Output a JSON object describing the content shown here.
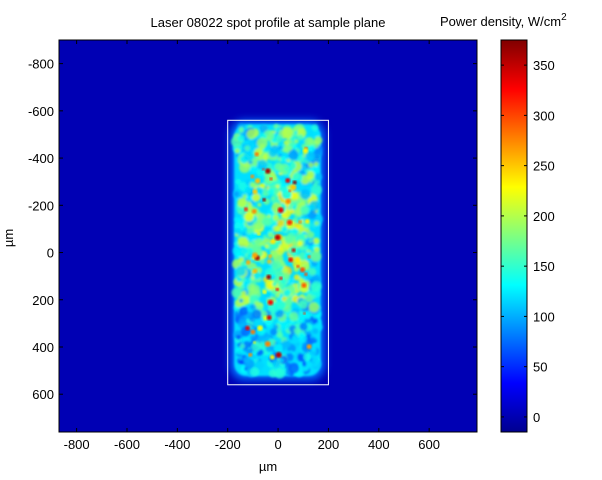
{
  "chart_data": {
    "type": "heatmap",
    "title": "Laser 08022 spot profile at sample plane",
    "xlabel": "µm",
    "ylabel": "µm",
    "xlim": [
      -870,
      790
    ],
    "ylim": [
      -900,
      760
    ],
    "y_axis_reversed": true,
    "xticks": [
      -800,
      -600,
      -400,
      -200,
      0,
      200,
      400,
      600
    ],
    "yticks": [
      -800,
      -600,
      -400,
      -200,
      0,
      200,
      400,
      600
    ],
    "colormap": "jet",
    "grid": false,
    "background_value": 5,
    "spot": {
      "x_range": [
        -190,
        185
      ],
      "y_range": [
        -560,
        540
      ],
      "typical_level": 140,
      "peak_level": 375
    },
    "annotation_box": {
      "x_range": [
        -200,
        200
      ],
      "y_range": [
        -560,
        560
      ],
      "color": "#ffffff"
    },
    "colorbar": {
      "label": "Power density, W/cm",
      "label_superscript": "2",
      "range": [
        -15,
        375
      ],
      "ticks": [
        0,
        50,
        100,
        150,
        200,
        250,
        300,
        350
      ]
    }
  }
}
